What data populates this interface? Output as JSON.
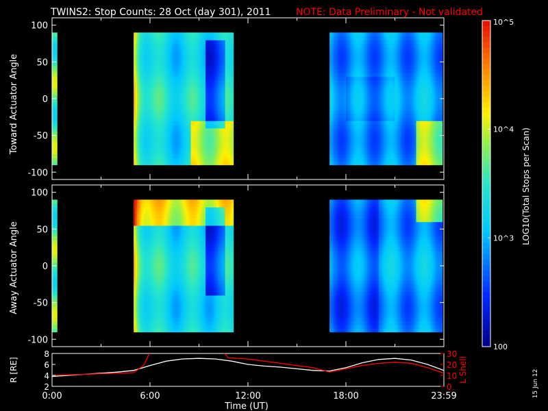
{
  "title": "TWINS2: Stop Counts: 28 Oct (day 301), 2011",
  "note": "NOTE: Data Preliminary - Not validated",
  "datestamp": "15 Jun 12",
  "colors": {
    "background": "#000000",
    "axis": "#ffffff",
    "note": "#ff0000",
    "l_shell_line": "#ff0000",
    "r_line": "#ffffff"
  },
  "chart_data": [
    {
      "type": "heatmap",
      "panel": "top",
      "ylabel": "Toward Actuator Angle",
      "ylim": [
        -110,
        110
      ],
      "yticks": [
        100,
        50,
        0,
        -50,
        -100
      ],
      "xlim_hours": [
        0,
        24
      ],
      "color_scale": "log10",
      "data_windows_hours": [
        [
          0.0,
          0.3
        ],
        [
          5.0,
          11.1
        ],
        [
          17.0,
          23.9
        ]
      ],
      "angle_range": [
        -90,
        90
      ]
    },
    {
      "type": "heatmap",
      "panel": "bottom",
      "ylabel": "Away Actuator Angle",
      "ylim": [
        -110,
        110
      ],
      "yticks": [
        100,
        50,
        0,
        -50,
        -100
      ],
      "xlim_hours": [
        0,
        24
      ],
      "color_scale": "log10",
      "data_windows_hours": [
        [
          0.0,
          0.3
        ],
        [
          5.0,
          11.1
        ],
        [
          17.0,
          23.9
        ]
      ],
      "angle_range": [
        -90,
        90
      ]
    },
    {
      "type": "line",
      "panel": "orbit",
      "ylabel_left": "R [RE]",
      "ylabel_right": "L Shell",
      "ylim_left": [
        2,
        8
      ],
      "ylim_right": [
        0,
        30
      ],
      "yticks_left": [
        8,
        6,
        4,
        2
      ],
      "yticks_right": [
        30,
        20,
        10,
        0
      ],
      "xlabel": "Time (UT)",
      "xticks": [
        "0:00",
        "6:00",
        "12:00",
        "18:00",
        "23:59"
      ],
      "series": [
        {
          "key": "R",
          "x": [
            0,
            2,
            4,
            5,
            6,
            7,
            8,
            9,
            10,
            11,
            12,
            13,
            14,
            15,
            16,
            17,
            18,
            19,
            20,
            21,
            22,
            23,
            24
          ],
          "y": [
            3.8,
            4.2,
            4.6,
            4.9,
            5.8,
            6.6,
            7.0,
            7.1,
            7.0,
            6.6,
            6.0,
            5.7,
            5.5,
            5.2,
            4.9,
            4.8,
            5.4,
            6.3,
            6.9,
            7.1,
            6.8,
            6.0,
            4.9
          ]
        },
        {
          "key": "L",
          "x": [
            0,
            2,
            4,
            5,
            5.6,
            6.0,
            10.5,
            10.8,
            12,
            14,
            16,
            17,
            18,
            19,
            20,
            21,
            22,
            23,
            24
          ],
          "y": [
            10,
            11,
            12,
            12.5,
            19,
            31,
            31,
            26,
            25,
            21,
            17,
            13,
            16,
            19,
            21,
            22,
            21,
            17,
            12
          ]
        }
      ]
    },
    {
      "type": "colorbar",
      "label": "LOG10(Total Stops per Scan)",
      "scale": "log10",
      "range": [
        100,
        100000
      ],
      "ticks": [
        "10^5",
        "10^4",
        "10^3",
        "100"
      ]
    }
  ]
}
